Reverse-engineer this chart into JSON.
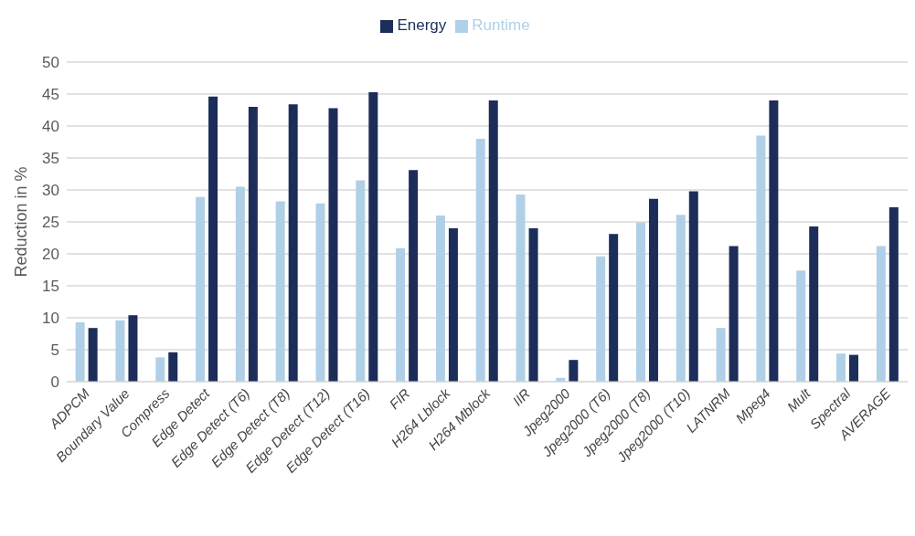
{
  "chart_data": {
    "type": "bar",
    "ylabel": "Reduction in %",
    "categories": [
      "ADPCM",
      "Boundary Value",
      "Compress",
      "Edge Detect",
      "Edge Detect (T6)",
      "Edge Detect (T8)",
      "Edge Detect (T12)",
      "Edge Detect (T16)",
      "FIR",
      "H264 Lblock",
      "H264 Mblock",
      "IIR",
      "Jpeg2000",
      "Jpeg2000 (T6)",
      "Jpeg2000 (T8)",
      "Jpeg2000 (T10)",
      "LATNRM",
      "Mpeg4",
      "Mult",
      "Spectral",
      "AVERAGE"
    ],
    "series": [
      {
        "name": "Runtime",
        "color": "#b0d0e8",
        "values": [
          9.3,
          9.6,
          3.8,
          28.9,
          30.5,
          28.2,
          27.9,
          31.5,
          20.9,
          26.0,
          38.0,
          29.3,
          0.6,
          19.6,
          24.9,
          26.1,
          8.4,
          38.5,
          17.4,
          4.4,
          21.2
        ]
      },
      {
        "name": "Energy",
        "color": "#1c2d5a",
        "values": [
          8.4,
          10.4,
          4.6,
          44.6,
          43.0,
          43.4,
          42.8,
          45.3,
          33.1,
          24.0,
          44.0,
          24.0,
          3.4,
          23.1,
          28.6,
          29.8,
          21.2,
          44.0,
          24.3,
          4.2,
          27.3
        ]
      }
    ],
    "ylim": [
      0,
      50
    ],
    "yticks": [
      0,
      5,
      10,
      15,
      20,
      25,
      30,
      35,
      40,
      45,
      50
    ],
    "grid": "y",
    "legend": "top"
  }
}
